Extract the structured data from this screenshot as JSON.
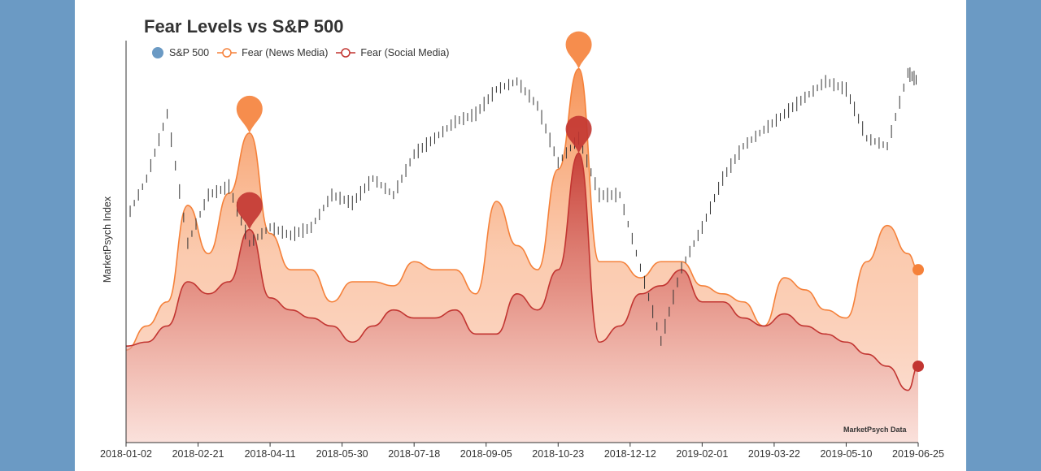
{
  "chart_data": {
    "type": "area",
    "title": "Fear Levels vs S&P 500",
    "ylabel": "MarketPsych Index",
    "credit": "MarketPsych Data",
    "x_ticks": [
      "2018-01-02",
      "2018-02-21",
      "2018-04-11",
      "2018-05-30",
      "2018-07-18",
      "2018-09-05",
      "2018-10-23",
      "2018-12-12",
      "2019-02-01",
      "2019-03-22",
      "2019-05-10",
      "2019-06-25"
    ],
    "x": [
      "2018-01-02",
      "2018-01-16",
      "2018-01-30",
      "2018-02-13",
      "2018-02-27",
      "2018-03-13",
      "2018-03-27",
      "2018-04-10",
      "2018-04-24",
      "2018-05-08",
      "2018-05-22",
      "2018-06-05",
      "2018-06-19",
      "2018-07-03",
      "2018-07-17",
      "2018-07-31",
      "2018-08-14",
      "2018-08-28",
      "2018-09-11",
      "2018-09-25",
      "2018-10-09",
      "2018-10-23",
      "2018-11-06",
      "2018-11-20",
      "2018-12-04",
      "2018-12-18",
      "2019-01-01",
      "2019-01-15",
      "2019-01-29",
      "2019-02-12",
      "2019-02-26",
      "2019-03-12",
      "2019-03-26",
      "2019-04-09",
      "2019-04-23",
      "2019-05-07",
      "2019-05-21",
      "2019-06-04",
      "2019-06-18",
      "2019-06-25"
    ],
    "fear_ylim": [
      0,
      100
    ],
    "sp_ylim": [
      2285,
      2993
    ],
    "grid": false,
    "legend_placement": "top-left",
    "series": [
      {
        "name": "S&P 500",
        "color": "#6b9ac4",
        "line_color": "#333333",
        "style": "candlestick",
        "values": [
          2678,
          2750,
          2864,
          2636,
          2721,
          2736,
          2636,
          2664,
          2650,
          2664,
          2721,
          2707,
          2750,
          2721,
          2793,
          2821,
          2850,
          2864,
          2907,
          2921,
          2878,
          2778,
          2821,
          2721,
          2721,
          2593,
          2464,
          2593,
          2664,
          2750,
          2807,
          2836,
          2864,
          2893,
          2921,
          2907,
          2821,
          2807,
          2936,
          2921
        ]
      },
      {
        "name": "Fear (News Media)",
        "color": "#f5813a",
        "values": [
          23,
          29,
          35,
          59,
          47,
          62,
          77,
          52,
          43,
          43,
          35,
          40,
          40,
          39,
          45,
          43,
          43,
          37,
          60,
          49,
          43,
          68,
          93,
          45,
          45,
          41,
          45,
          45,
          39,
          37,
          35,
          29,
          41,
          38,
          33,
          31,
          45,
          54,
          47,
          43
        ],
        "pins": [
          6,
          22
        ]
      },
      {
        "name": "Fear (Social Media)",
        "color": "#c23531",
        "values": [
          24,
          25,
          29,
          40,
          37,
          40,
          53,
          36,
          33,
          31,
          29,
          25,
          29,
          33,
          31,
          31,
          33,
          27,
          27,
          37,
          33,
          43,
          72,
          25,
          29,
          37,
          39,
          43,
          35,
          35,
          31,
          29,
          32,
          29,
          27,
          25,
          22,
          19,
          13,
          19
        ],
        "pins": [
          6,
          22
        ]
      }
    ]
  }
}
